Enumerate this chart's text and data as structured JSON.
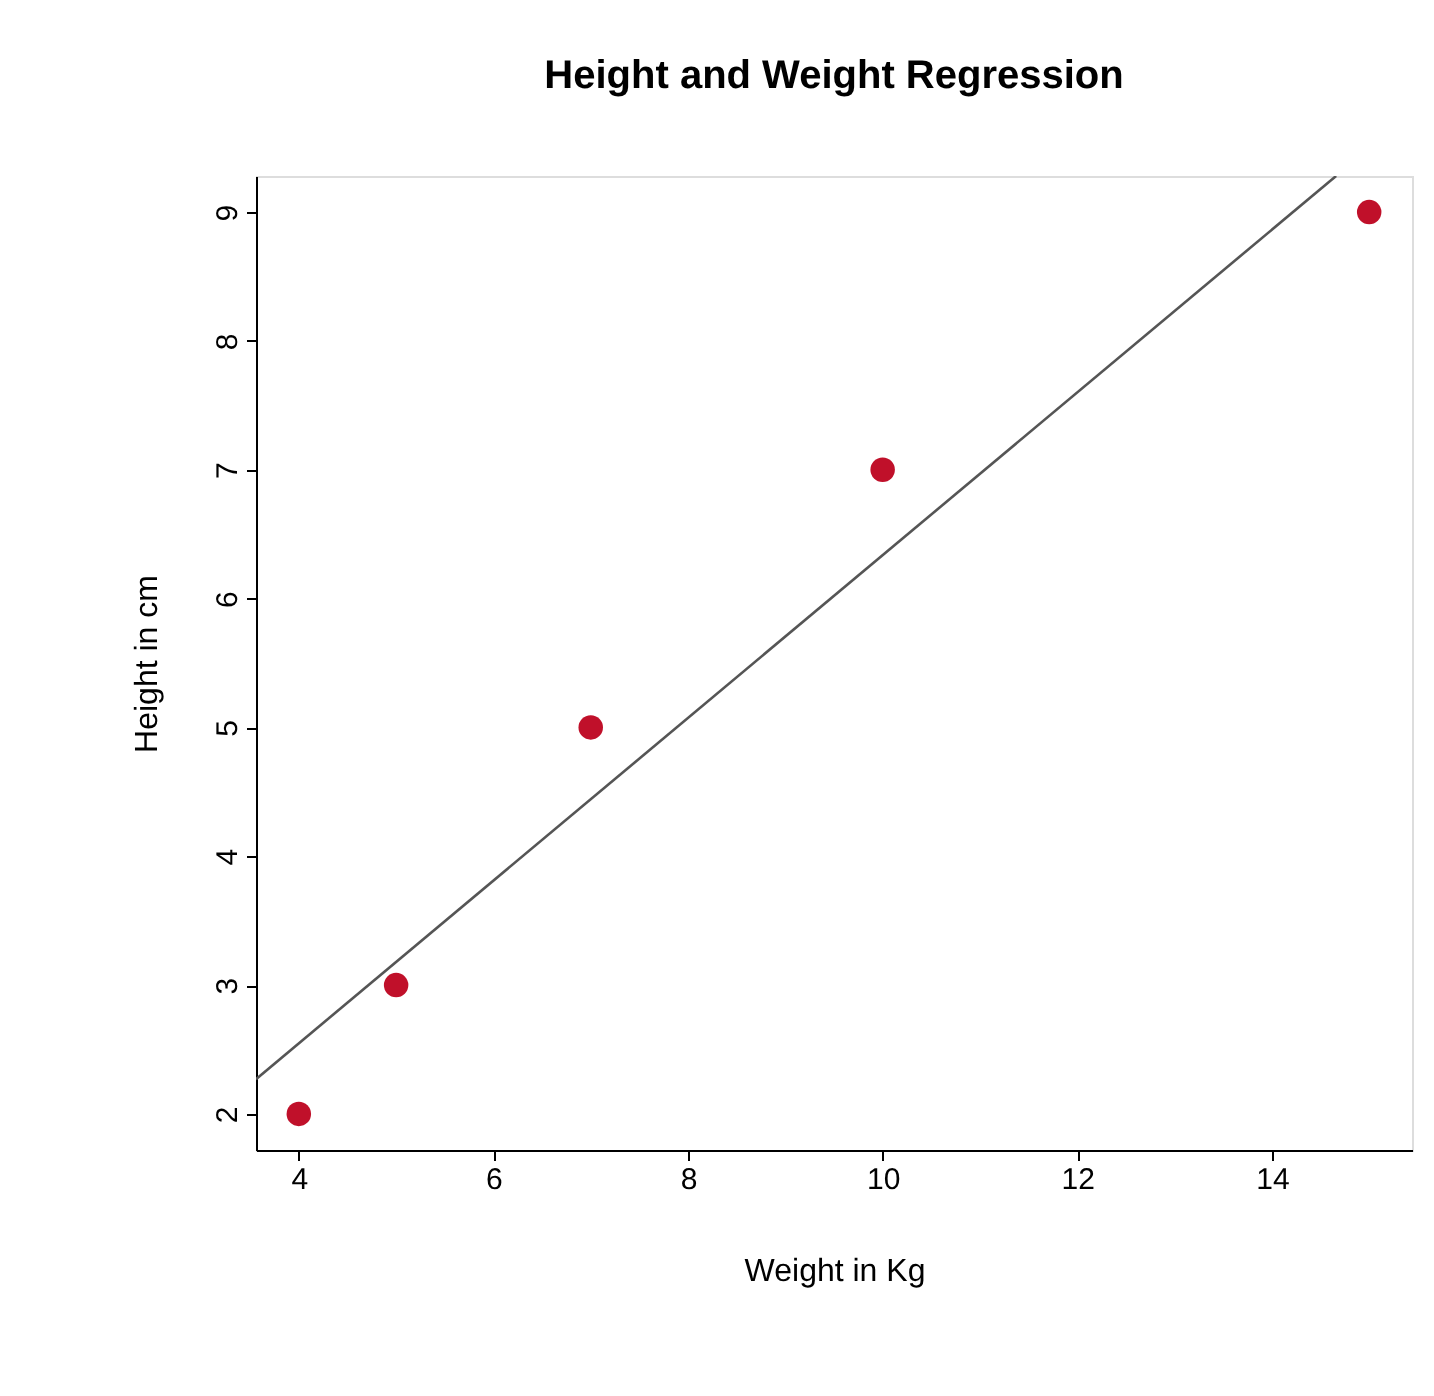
{
  "chart_data": {
    "type": "scatter",
    "title": "Height and Weight Regression",
    "xlabel": "Weight in Kg",
    "ylabel": "Height in cm",
    "x": [
      4,
      5,
      7,
      10,
      15
    ],
    "series": [
      {
        "color": "#c0102a",
        "values": [
          2,
          3,
          5,
          7,
          9
        ]
      },
      {
        "type": "line",
        "marker": "none",
        "color": "#555555",
        "x": [
          3.56,
          14.66
        ],
        "values": [
          2.27,
          9.28
        ]
      }
    ],
    "xlim": [
      3.56,
      15.44
    ],
    "ylim": [
      1.72,
      9.28
    ],
    "xticks": [
      4,
      6,
      8,
      10,
      12,
      14
    ],
    "yticks": [
      2,
      3,
      4,
      5,
      6,
      7,
      8,
      9
    ],
    "grid": false,
    "marker": "circle"
  }
}
